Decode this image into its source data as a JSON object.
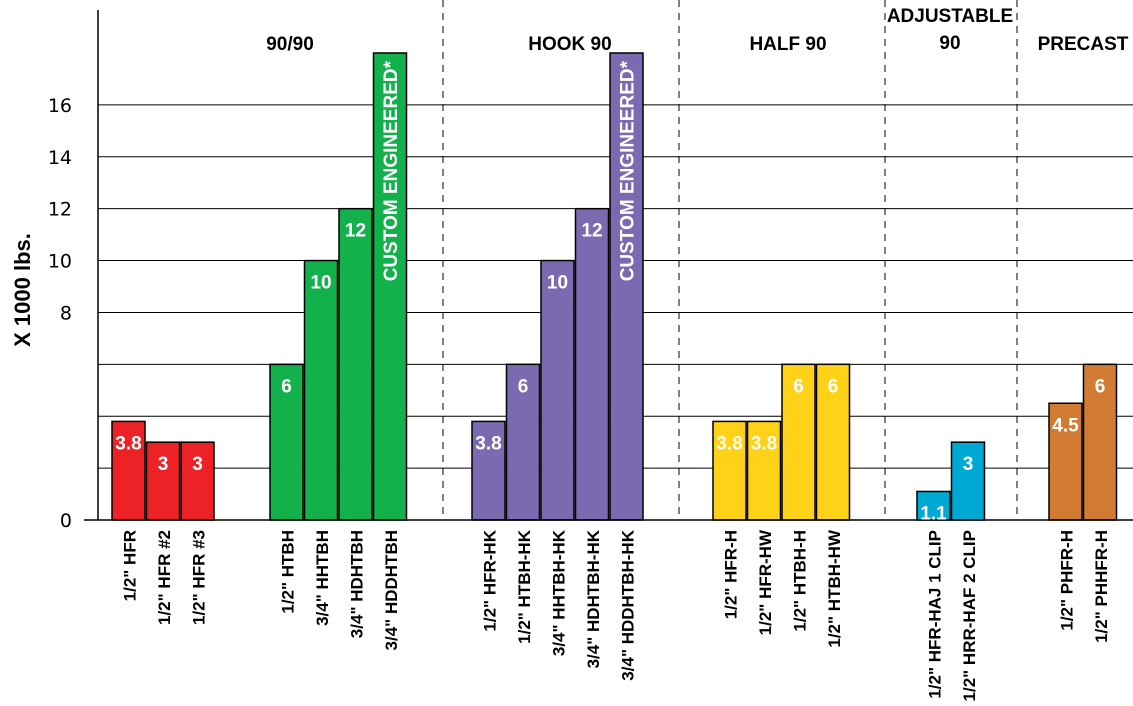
{
  "chart_data": {
    "type": "bar",
    "ylabel": "X 1000 lbs.",
    "ylim": [
      0,
      18
    ],
    "yticks": [
      {
        "value": 0,
        "label": "0"
      },
      {
        "value": 2,
        "label": ""
      },
      {
        "value": 4,
        "label": ""
      },
      {
        "value": 6,
        "label": ""
      },
      {
        "value": 8,
        "label": "8"
      },
      {
        "value": 10,
        "label": "10"
      },
      {
        "value": 12,
        "label": "12"
      },
      {
        "value": 14,
        "label": "14"
      },
      {
        "value": 16,
        "label": "16"
      }
    ],
    "grid": true,
    "groups": [
      {
        "name": "90/90",
        "color": "#13b14b",
        "bars": [
          {
            "category": "1/2\" HTBH",
            "value": 6,
            "label": "6"
          },
          {
            "category": "3/4\" HHTBH",
            "value": 10,
            "label": "10"
          },
          {
            "category": "3/4\" HDHTBH",
            "value": 12,
            "label": "12"
          },
          {
            "category": "3/4\" HDDHTBH",
            "value": 18,
            "label": "CUSTOM ENGINEERED*"
          }
        ]
      },
      {
        "name": "HOOK 90",
        "color": "#7b6ab0",
        "bars": [
          {
            "category": "1/2\" HFR-HK",
            "value": 3.8,
            "label": "3.8"
          },
          {
            "category": "1/2\" HTBH-HK",
            "value": 6,
            "label": "6"
          },
          {
            "category": "3/4\" HHTBH-HK",
            "value": 10,
            "label": "10"
          },
          {
            "category": "3/4\" HDHTBH-HK",
            "value": 12,
            "label": "12"
          },
          {
            "category": "3/4\" HDDHTBH-HK",
            "value": 18,
            "label": "CUSTOM ENGINEERED*"
          }
        ]
      },
      {
        "name": "HALF 90",
        "color": "#ffd117",
        "bars": [
          {
            "category": "1/2\" HFR-H",
            "value": 3.8,
            "label": "3.8"
          },
          {
            "category": "1/2\" HFR-HW",
            "value": 3.8,
            "label": "3.8"
          },
          {
            "category": "1/2\" HTBH-H",
            "value": 6,
            "label": "6"
          },
          {
            "category": "1/2\" HTBH-HW",
            "value": 6,
            "label": "6"
          }
        ]
      },
      {
        "name": "ADJUSTABLE 90",
        "color": "#00a9d4",
        "bars": [
          {
            "category": "1/2\" HFR-HAJ 1 CLIP",
            "value": 1.1,
            "label": "1.1"
          },
          {
            "category": "1/2\" HRR-HAF 2 CLIP",
            "value": 3,
            "label": "3"
          }
        ]
      },
      {
        "name": "PRECAST",
        "color": "#d27b32",
        "bars": [
          {
            "category": "1/2\" PHFR-H",
            "value": 4.5,
            "label": "4.5"
          },
          {
            "category": "1/2\" PHHFR-H",
            "value": 6,
            "label": "6"
          }
        ]
      }
    ],
    "ungrouped": {
      "color": "#ec2227",
      "bars": [
        {
          "category": "1/2\" HFR",
          "value": 3.8,
          "label": "3.8"
        },
        {
          "category": "1/2\" HFR #2",
          "value": 3,
          "label": "3"
        },
        {
          "category": "1/2\" HFR #3",
          "value": 3,
          "label": "3"
        }
      ]
    }
  }
}
